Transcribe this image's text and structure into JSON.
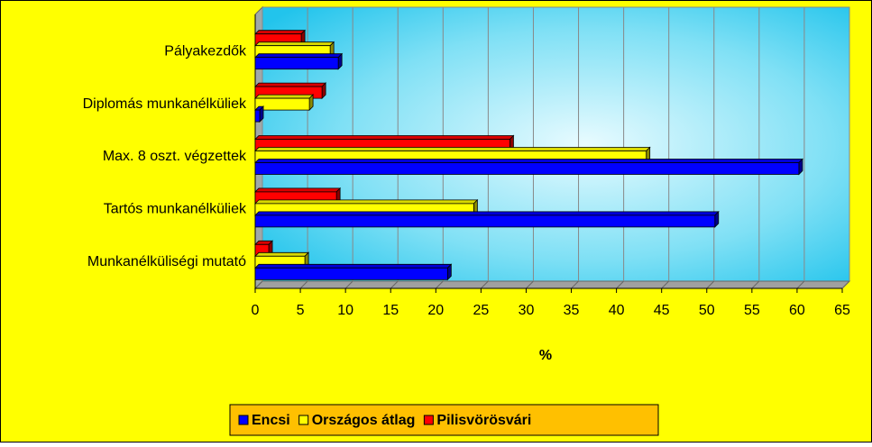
{
  "chart_data": {
    "type": "bar",
    "orientation": "horizontal",
    "categories": [
      "Pályakezdők",
      "Diplomás munkanélküliek",
      "Max. 8 oszt. végzettek",
      "Tartós munkanélküliek",
      "Munkanélküliségi mutató"
    ],
    "series": [
      {
        "name": "Encsi",
        "color": "#0000ff",
        "values": [
          9.2,
          0.5,
          60.2,
          50.9,
          21.3
        ]
      },
      {
        "name": "Országos átlag",
        "color": "#ffff00",
        "values": [
          8.3,
          6,
          43.3,
          24.2,
          5.5
        ]
      },
      {
        "name": "Pilisvörösvári",
        "color": "#ff0000",
        "values": [
          5.1,
          7.4,
          28.2,
          9,
          1.5
        ]
      }
    ],
    "xlabel": "%",
    "xlim": [
      0,
      65
    ],
    "xticks": [
      0,
      5,
      10,
      15,
      20,
      25,
      30,
      35,
      40,
      45,
      50,
      55,
      60,
      65
    ],
    "grid": true,
    "legend": "bottom"
  }
}
